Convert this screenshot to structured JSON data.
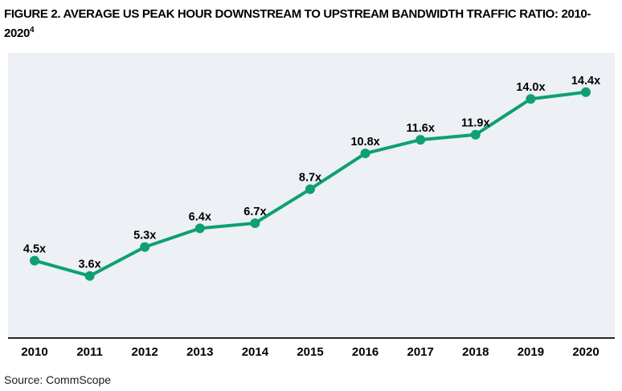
{
  "header": {
    "title_line1": "FIGURE 2. AVERAGE US PEAK HOUR DOWNSTREAM TO UPSTREAM BANDWIDTH TRAFFIC RATIO: 2010-",
    "title_line2": "2020",
    "title_sup": "4"
  },
  "footer": {
    "source": "Source: CommScope"
  },
  "chart_data": {
    "type": "line",
    "title": "FIGURE 2. AVERAGE US PEAK HOUR DOWNSTREAM TO UPSTREAM BANDWIDTH TRAFFIC RATIO: 2010-2020",
    "categories": [
      "2010",
      "2011",
      "2012",
      "2013",
      "2014",
      "2015",
      "2016",
      "2017",
      "2018",
      "2019",
      "2020"
    ],
    "values": [
      4.5,
      3.6,
      5.3,
      6.4,
      6.7,
      8.7,
      10.8,
      11.6,
      11.9,
      14.0,
      14.4
    ],
    "point_labels": [
      "4.5x",
      "3.6x",
      "5.3x",
      "6.4x",
      "6.7x",
      "8.7x",
      "10.8x",
      "11.6x",
      "11.9x",
      "14.0x",
      "14.4x"
    ],
    "xlabel": "",
    "ylabel": "",
    "ylim": [
      0,
      16.7
    ],
    "grid": false,
    "legend": "none",
    "line_color": "#0da070",
    "marker_color": "#0da070",
    "plot_bg_color": "#edf0f5",
    "axis_line_color": "#262626",
    "label_color": "#000000"
  }
}
